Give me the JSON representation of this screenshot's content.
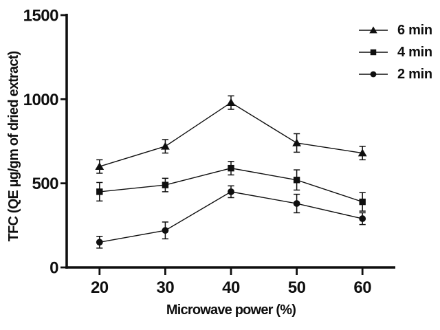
{
  "figure": {
    "background": "#ffffff",
    "ink_color": "#0f0f0f"
  },
  "chart_data": {
    "type": "line",
    "title": "",
    "xlabel": "Microwave power (%)",
    "ylabel": "TFC (QE µg/gm of dried extract)",
    "x": [
      20,
      30,
      40,
      50,
      60
    ],
    "xticks": [
      20,
      30,
      40,
      50,
      60
    ],
    "yticks": [
      0,
      500,
      1000,
      1500
    ],
    "xlim": [
      15,
      65
    ],
    "ylim": [
      0,
      1500
    ],
    "grid": false,
    "error_bars": true,
    "legend_position": "top-right",
    "series": [
      {
        "name": "6 min",
        "marker": "triangle",
        "values": [
          600,
          720,
          980,
          740,
          680
        ],
        "errors": [
          40,
          40,
          40,
          55,
          40
        ]
      },
      {
        "name": "4 min",
        "marker": "square",
        "values": [
          450,
          490,
          590,
          520,
          390
        ],
        "errors": [
          55,
          40,
          40,
          60,
          55
        ]
      },
      {
        "name": "2 min",
        "marker": "circle",
        "values": [
          150,
          220,
          450,
          380,
          290
        ],
        "errors": [
          35,
          50,
          35,
          55,
          35
        ]
      }
    ]
  }
}
